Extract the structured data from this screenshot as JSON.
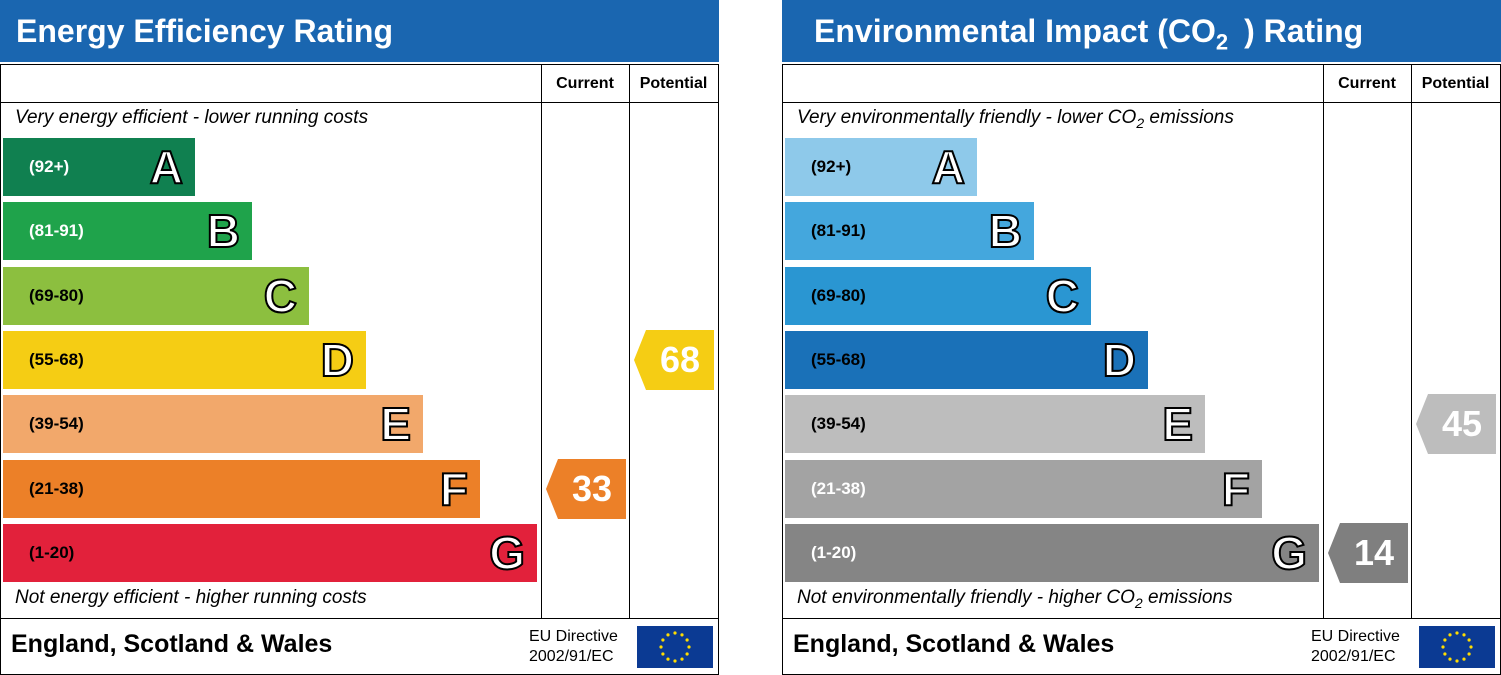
{
  "charts": [
    {
      "title": "Energy Efficiency Rating",
      "col_current": "Current",
      "col_potential": "Potential",
      "top_text": "Very energy efficient - lower running costs",
      "bottom_text": "Not energy efficient - higher running costs",
      "country": "England, Scotland & Wales",
      "eu_line1": "EU Directive",
      "eu_line2": "2002/91/EC",
      "bands": [
        {
          "range": "(92+)",
          "letter": "A",
          "color": "#108050",
          "text_color": "#ffffff"
        },
        {
          "range": "(81-91)",
          "letter": "B",
          "color": "#1fa34b",
          "text_color": "#ffffff"
        },
        {
          "range": "(69-80)",
          "letter": "C",
          "color": "#8cbf3f",
          "text_color": "#000000"
        },
        {
          "range": "(55-68)",
          "letter": "D",
          "color": "#f5cd14",
          "text_color": "#000000"
        },
        {
          "range": "(39-54)",
          "letter": "E",
          "color": "#f2a86b",
          "text_color": "#000000"
        },
        {
          "range": "(21-38)",
          "letter": "F",
          "color": "#ec8028",
          "text_color": "#000000"
        },
        {
          "range": "(1-20)",
          "letter": "G",
          "color": "#e2213b",
          "text_color": "#000000"
        }
      ],
      "current": {
        "value": "33",
        "color": "#ec8028"
      },
      "potential": {
        "value": "68",
        "color": "#f5cd14"
      }
    },
    {
      "title": "Environmental Impact (CO",
      "title_sub": "2",
      "title_end": ") Rating",
      "col_current": "Current",
      "col_potential": "Potential",
      "top_text": "Very environmentally friendly - lower CO",
      "top_text_sub": "2",
      "top_text_end": " emissions",
      "bottom_text": "Not environmentally friendly - higher CO",
      "bottom_text_sub": "2",
      "bottom_text_end": " emissions",
      "country": "England, Scotland & Wales",
      "eu_line1": "EU Directive",
      "eu_line2": "2002/91/EC",
      "bands": [
        {
          "range": "(92+)",
          "letter": "A",
          "color": "#8ec9ea",
          "text_color": "#000000"
        },
        {
          "range": "(81-91)",
          "letter": "B",
          "color": "#44a7dd",
          "text_color": "#000000"
        },
        {
          "range": "(69-80)",
          "letter": "C",
          "color": "#2a96d2",
          "text_color": "#000000"
        },
        {
          "range": "(55-68)",
          "letter": "D",
          "color": "#1a71b8",
          "text_color": "#000000"
        },
        {
          "range": "(39-54)",
          "letter": "E",
          "color": "#bdbdbd",
          "text_color": "#000000"
        },
        {
          "range": "(21-38)",
          "letter": "F",
          "color": "#a3a3a3",
          "text_color": "#ffffff"
        },
        {
          "range": "(1-20)",
          "letter": "G",
          "color": "#858585",
          "text_color": "#ffffff"
        }
      ],
      "current": {
        "value": "14",
        "color": "#7f7f7f"
      },
      "potential": {
        "value": "45",
        "color": "#bdbdbd"
      }
    }
  ],
  "chart_data": [
    {
      "type": "bar",
      "title": "Energy Efficiency Rating",
      "categories": [
        "A",
        "B",
        "C",
        "D",
        "E",
        "F",
        "G"
      ],
      "ranges": [
        "(92+)",
        "(81-91)",
        "(69-80)",
        "(55-68)",
        "(39-54)",
        "(21-38)",
        "(1-20)"
      ],
      "current": 33,
      "potential": 68
    },
    {
      "type": "bar",
      "title": "Environmental Impact (CO2) Rating",
      "categories": [
        "A",
        "B",
        "C",
        "D",
        "E",
        "F",
        "G"
      ],
      "ranges": [
        "(92+)",
        "(81-91)",
        "(69-80)",
        "(55-68)",
        "(39-54)",
        "(21-38)",
        "(1-20)"
      ],
      "current": 14,
      "potential": 45
    }
  ]
}
